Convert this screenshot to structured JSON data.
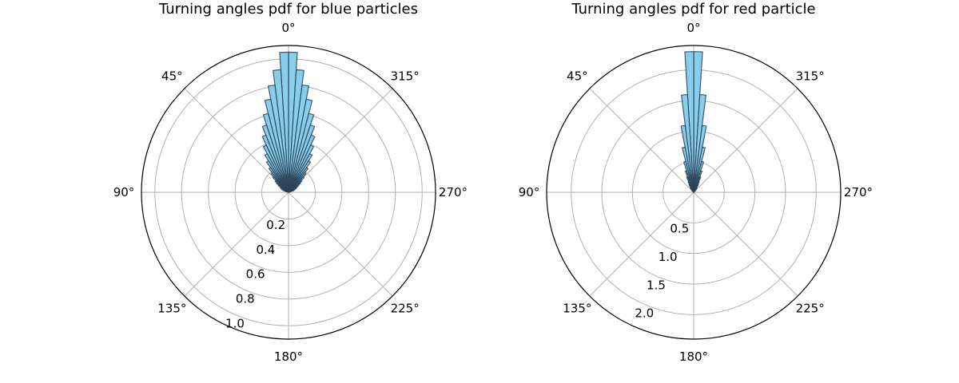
{
  "chart_data": [
    {
      "type": "polar-bar",
      "title": "Turning angles pdf for blue particles",
      "theta_zero_location": "top",
      "theta_direction": "counterclockwise",
      "theta_tick_labels": [
        "0°",
        "45°",
        "90°",
        "135°",
        "180°",
        "225°",
        "270°",
        "315°"
      ],
      "r_ticks": [
        0.2,
        0.4,
        0.6,
        0.8,
        1.0
      ],
      "r_tick_labels": [
        "0.2",
        "0.4",
        "0.6",
        "0.8",
        "1.0"
      ],
      "r_max": 1.1,
      "grid": true,
      "bar_color": "#87ceeb",
      "edge_color": "#2a3f55",
      "bin_width_deg": 3.6,
      "bins": [
        {
          "angle_deg": -1.8,
          "value": 1.05
        },
        {
          "angle_deg": 1.8,
          "value": 1.05
        },
        {
          "angle_deg": -5.4,
          "value": 0.92
        },
        {
          "angle_deg": 5.4,
          "value": 0.92
        },
        {
          "angle_deg": -9.0,
          "value": 0.81
        },
        {
          "angle_deg": 9.0,
          "value": 0.81
        },
        {
          "angle_deg": -12.6,
          "value": 0.71
        },
        {
          "angle_deg": 12.6,
          "value": 0.71
        },
        {
          "angle_deg": -16.2,
          "value": 0.61
        },
        {
          "angle_deg": 16.2,
          "value": 0.61
        },
        {
          "angle_deg": -19.8,
          "value": 0.53
        },
        {
          "angle_deg": 19.8,
          "value": 0.53
        },
        {
          "angle_deg": -23.4,
          "value": 0.46
        },
        {
          "angle_deg": 23.4,
          "value": 0.46
        },
        {
          "angle_deg": -27.0,
          "value": 0.39
        },
        {
          "angle_deg": 27.0,
          "value": 0.39
        },
        {
          "angle_deg": -30.6,
          "value": 0.33
        },
        {
          "angle_deg": 30.6,
          "value": 0.33
        },
        {
          "angle_deg": -34.2,
          "value": 0.28
        },
        {
          "angle_deg": 34.2,
          "value": 0.28
        },
        {
          "angle_deg": -37.8,
          "value": 0.23
        },
        {
          "angle_deg": 37.8,
          "value": 0.23
        },
        {
          "angle_deg": -41.4,
          "value": 0.19
        },
        {
          "angle_deg": 41.4,
          "value": 0.19
        },
        {
          "angle_deg": -45.0,
          "value": 0.16
        },
        {
          "angle_deg": 45.0,
          "value": 0.16
        },
        {
          "angle_deg": -48.6,
          "value": 0.13
        },
        {
          "angle_deg": 48.6,
          "value": 0.13
        },
        {
          "angle_deg": -52.2,
          "value": 0.11
        },
        {
          "angle_deg": 52.2,
          "value": 0.11
        },
        {
          "angle_deg": -55.8,
          "value": 0.09
        },
        {
          "angle_deg": 55.8,
          "value": 0.09
        },
        {
          "angle_deg": -59.4,
          "value": 0.07
        },
        {
          "angle_deg": 59.4,
          "value": 0.07
        },
        {
          "angle_deg": -63.0,
          "value": 0.06
        },
        {
          "angle_deg": 63.0,
          "value": 0.06
        },
        {
          "angle_deg": -66.6,
          "value": 0.05
        },
        {
          "angle_deg": 66.6,
          "value": 0.05
        },
        {
          "angle_deg": -70.2,
          "value": 0.04
        },
        {
          "angle_deg": 70.2,
          "value": 0.04
        }
      ]
    },
    {
      "type": "polar-bar",
      "title": "Turning angles pdf for red particle",
      "theta_zero_location": "top",
      "theta_direction": "counterclockwise",
      "theta_tick_labels": [
        "0°",
        "45°",
        "90°",
        "135°",
        "180°",
        "225°",
        "270°",
        "315°"
      ],
      "r_ticks": [
        0.5,
        1.0,
        1.5,
        2.0
      ],
      "r_tick_labels": [
        "0.5",
        "1.0",
        "1.5",
        "2.0"
      ],
      "r_max": 2.4,
      "grid": true,
      "bar_color": "#87ceeb",
      "edge_color": "#2a3f55",
      "bin_width_deg": 3.6,
      "bins": [
        {
          "angle_deg": -1.8,
          "value": 2.3
        },
        {
          "angle_deg": 1.8,
          "value": 2.3
        },
        {
          "angle_deg": -5.4,
          "value": 1.6
        },
        {
          "angle_deg": 5.4,
          "value": 1.6
        },
        {
          "angle_deg": -9.0,
          "value": 1.1
        },
        {
          "angle_deg": 9.0,
          "value": 1.1
        },
        {
          "angle_deg": -12.6,
          "value": 0.75
        },
        {
          "angle_deg": 12.6,
          "value": 0.75
        },
        {
          "angle_deg": -16.2,
          "value": 0.52
        },
        {
          "angle_deg": 16.2,
          "value": 0.52
        },
        {
          "angle_deg": -19.8,
          "value": 0.37
        },
        {
          "angle_deg": 19.8,
          "value": 0.37
        },
        {
          "angle_deg": -23.4,
          "value": 0.27
        },
        {
          "angle_deg": 23.4,
          "value": 0.27
        },
        {
          "angle_deg": -27.0,
          "value": 0.19
        },
        {
          "angle_deg": 27.0,
          "value": 0.19
        },
        {
          "angle_deg": -30.6,
          "value": 0.14
        },
        {
          "angle_deg": 30.6,
          "value": 0.14
        },
        {
          "angle_deg": -34.2,
          "value": 0.1
        },
        {
          "angle_deg": 34.2,
          "value": 0.1
        },
        {
          "angle_deg": -37.8,
          "value": 0.07
        },
        {
          "angle_deg": 37.8,
          "value": 0.07
        },
        {
          "angle_deg": -41.4,
          "value": 0.05
        },
        {
          "angle_deg": 41.4,
          "value": 0.05
        },
        {
          "angle_deg": -45.0,
          "value": 0.04
        },
        {
          "angle_deg": 45.0,
          "value": 0.04
        }
      ]
    }
  ]
}
